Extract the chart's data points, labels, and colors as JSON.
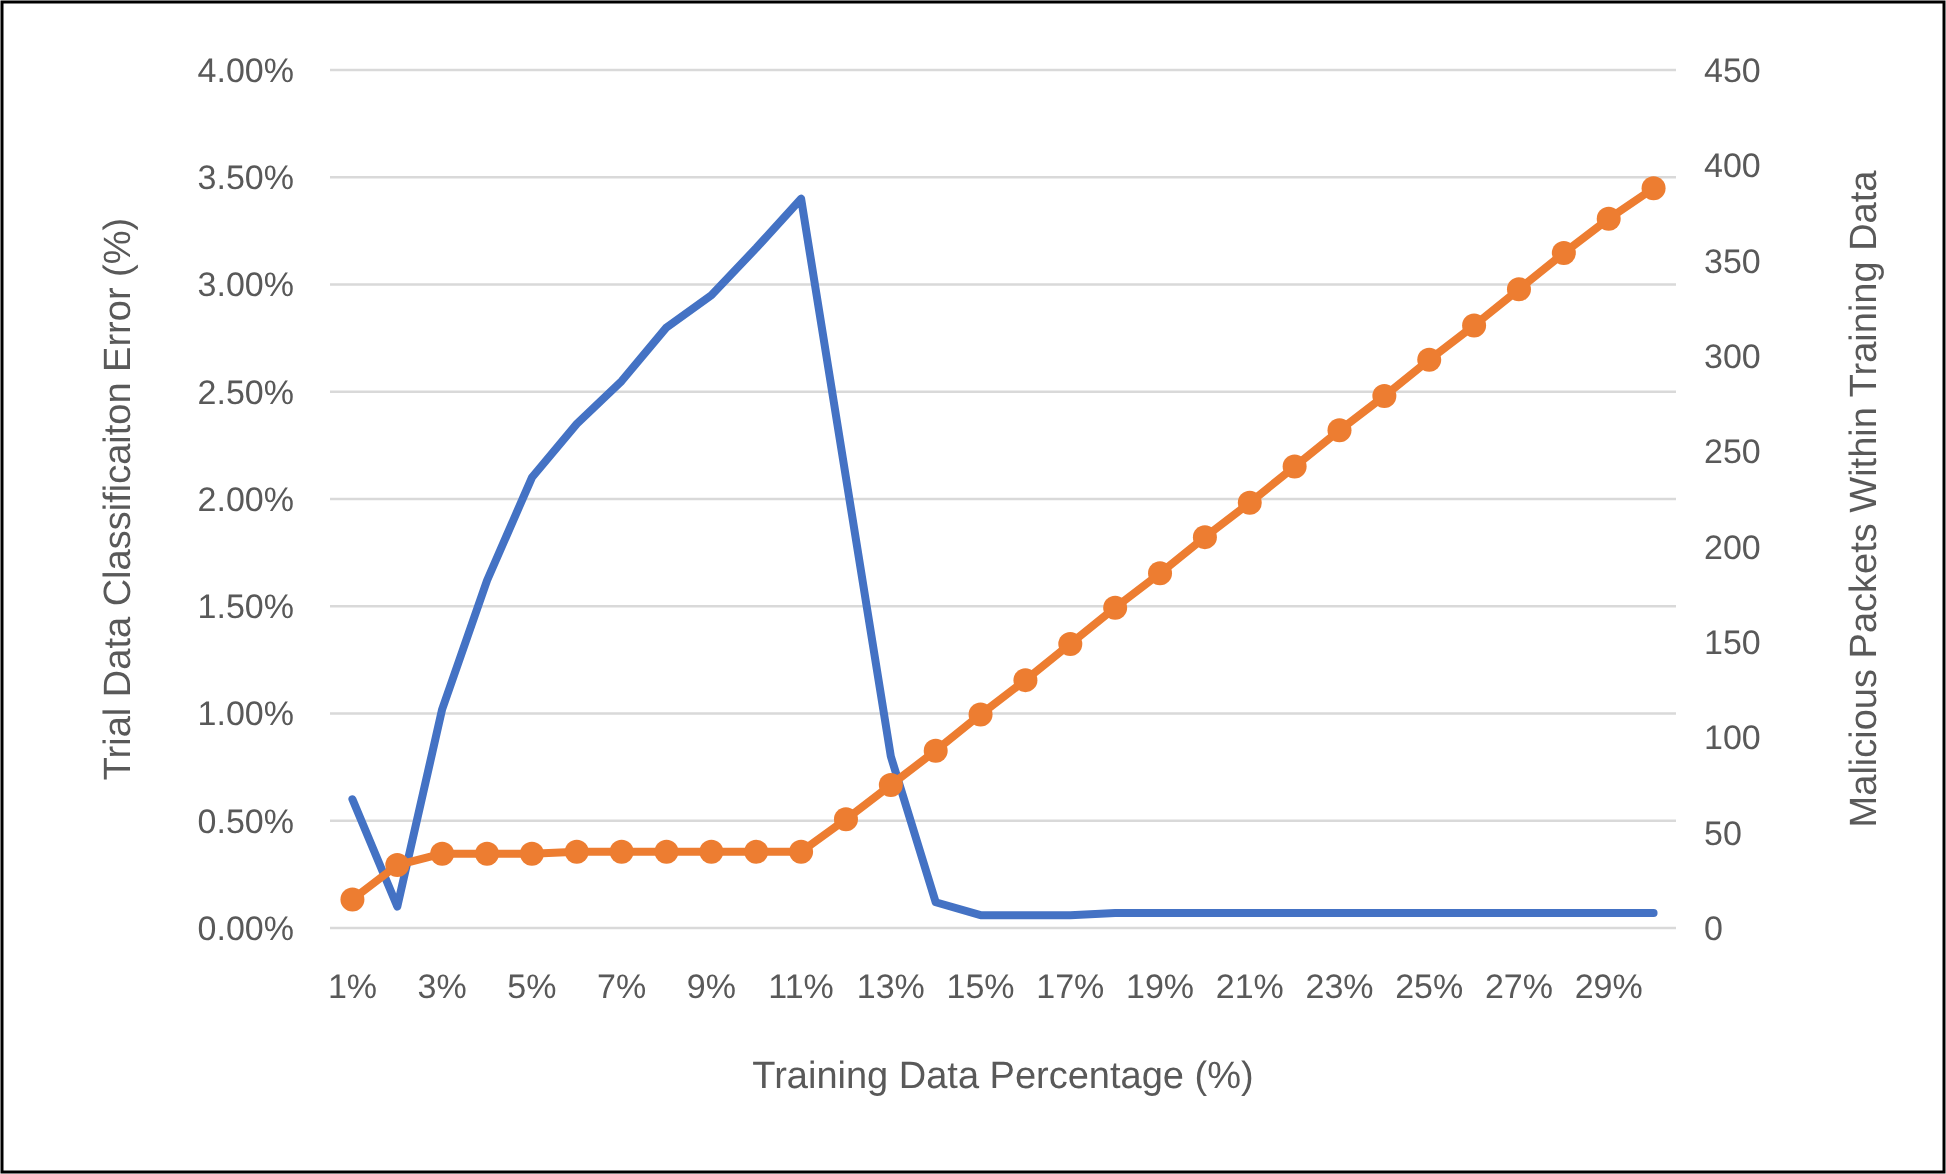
{
  "chart_data": {
    "type": "line",
    "xlabel": "Training Data Percentage (%)",
    "ylabel": "Trial Data Classificaiton Error (%)",
    "y2label": "Malicious Packets Within Training Data",
    "categories": [
      "1%",
      null,
      "3%",
      null,
      "5%",
      null,
      "7%",
      null,
      "9%",
      null,
      "11%",
      null,
      "13%",
      null,
      "15%",
      null,
      "17%",
      null,
      "19%",
      null,
      "21%",
      null,
      "23%",
      null,
      "25%",
      null,
      "27%",
      null,
      "29%",
      null
    ],
    "series": [
      {
        "color": "#4472c4",
        "marker": "none",
        "values": [
          0.6,
          0.1,
          1.02,
          1.62,
          2.1,
          2.35,
          2.55,
          2.8,
          2.95,
          3.17,
          3.4,
          2.1,
          0.8,
          0.12,
          0.06,
          0.06,
          0.06,
          0.07,
          0.07,
          0.07,
          0.07,
          0.07,
          0.07,
          0.07,
          0.07,
          0.07,
          0.07,
          0.07,
          0.07,
          0.07
        ]
      },
      {
        "color": "#ed7d31",
        "marker": "circle",
        "axis": "y2",
        "values": [
          15,
          33,
          39,
          39,
          39,
          40,
          40,
          40,
          40,
          40,
          40,
          57,
          75,
          93,
          112,
          130,
          149,
          168,
          186,
          205,
          223,
          242,
          261,
          279,
          298,
          316,
          335,
          354,
          372,
          388
        ]
      }
    ],
    "ylim": [
      0,
      4
    ],
    "yticks": [
      {
        "value": 0,
        "label": "0.00%"
      },
      {
        "value": 0.5,
        "label": "0.50%"
      },
      {
        "value": 1,
        "label": "1.00%"
      },
      {
        "value": 1.5,
        "label": "1.50%"
      },
      {
        "value": 2,
        "label": "2.00%"
      },
      {
        "value": 2.5,
        "label": "2.50%"
      },
      {
        "value": 3,
        "label": "3.00%"
      },
      {
        "value": 3.5,
        "label": "3.50%"
      },
      {
        "value": 4,
        "label": "4.00%"
      }
    ],
    "y2lim": [
      0,
      450
    ],
    "y2ticks": [
      0,
      50,
      100,
      150,
      200,
      250,
      300,
      350,
      400,
      450
    ],
    "grid": "y"
  }
}
